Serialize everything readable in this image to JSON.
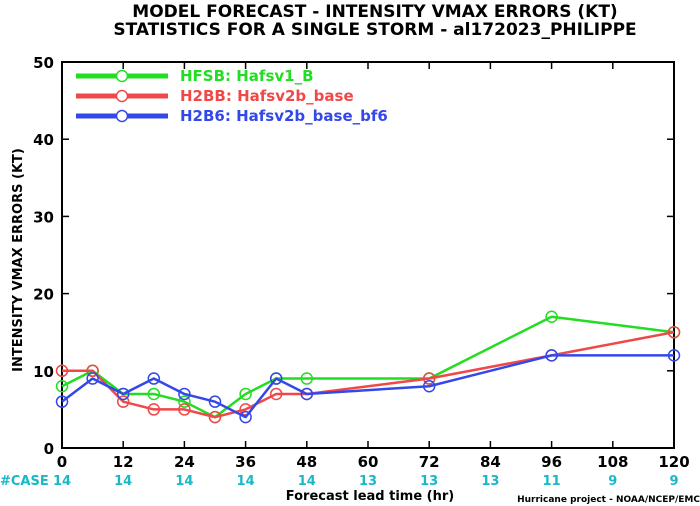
{
  "chart_data": {
    "type": "line",
    "title": "MODEL FORECAST - INTENSITY VMAX ERRORS (KT)",
    "subtitle": "STATISTICS FOR A SINGLE STORM - al172023_PHILIPPE",
    "xlabel": "Forecast lead time (hr)",
    "ylabel": "INTENSITY VMAX ERRORS (KT)",
    "xlim": [
      0,
      120
    ],
    "ylim": [
      0,
      50
    ],
    "xticks": [
      0,
      12,
      24,
      36,
      48,
      60,
      72,
      84,
      96,
      108,
      120
    ],
    "yticks": [
      0,
      10,
      20,
      30,
      40,
      50
    ],
    "grid": false,
    "legend_position": "top-left",
    "series": [
      {
        "name": "HFSB: Hafsv1_B",
        "color": "#22dd22",
        "x": [
          0,
          6,
          12,
          18,
          24,
          30,
          36,
          42,
          48,
          72,
          96,
          120
        ],
        "y": [
          8,
          10,
          7,
          7,
          6,
          4,
          7,
          9,
          9,
          9,
          17,
          15
        ]
      },
      {
        "name": "H2BB: Hafsv2b_base",
        "color": "#f04848",
        "x": [
          0,
          6,
          12,
          18,
          24,
          30,
          36,
          42,
          48,
          72,
          96,
          120
        ],
        "y": [
          10,
          10,
          6,
          5,
          5,
          4,
          5,
          7,
          7,
          9,
          12,
          15
        ]
      },
      {
        "name": "H2B6: Hafsv2b_base_bf6",
        "color": "#3348e8",
        "x": [
          0,
          6,
          12,
          18,
          24,
          30,
          36,
          42,
          48,
          72,
          96,
          120
        ],
        "y": [
          6,
          9,
          7,
          9,
          7,
          6,
          4,
          9,
          7,
          8,
          12,
          12
        ]
      }
    ],
    "case_label": "#CASE",
    "case_color": "#19b8c8",
    "cases": [
      {
        "x": 0,
        "n": "14"
      },
      {
        "x": 12,
        "n": "14"
      },
      {
        "x": 24,
        "n": "14"
      },
      {
        "x": 36,
        "n": "14"
      },
      {
        "x": 48,
        "n": "14"
      },
      {
        "x": 60,
        "n": "13"
      },
      {
        "x": 72,
        "n": "13"
      },
      {
        "x": 84,
        "n": "13"
      },
      {
        "x": 96,
        "n": "11"
      },
      {
        "x": 108,
        "n": "9"
      },
      {
        "x": 120,
        "n": "9"
      }
    ],
    "credit": "Hurricane project - NOAA/NCEP/EMC"
  }
}
